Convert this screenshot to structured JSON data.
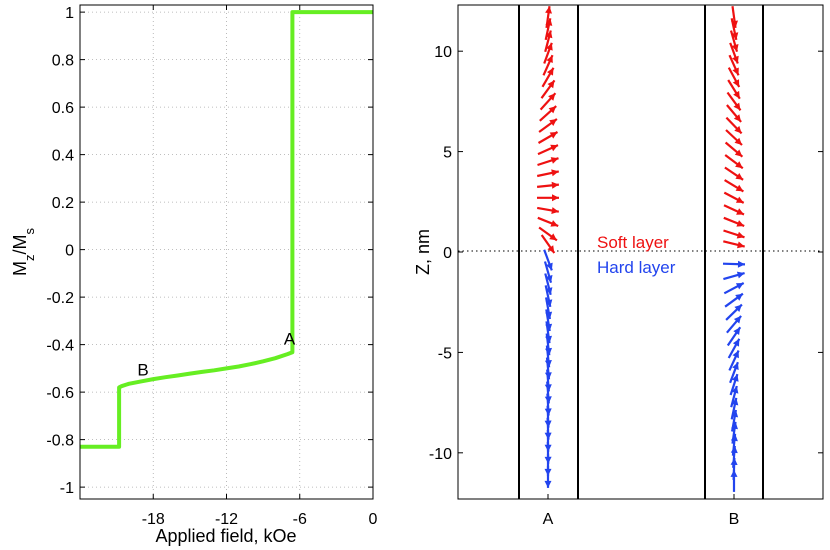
{
  "chart_data": [
    {
      "type": "line",
      "xlabel": "Applied field, kOe",
      "ylabel_main": "M",
      "ylabel_sub1": "z",
      "ylabel_mid": "/M",
      "ylabel_sub2": "s",
      "xlim": [
        -24,
        0
      ],
      "ylim": [
        -1.05,
        1.03
      ],
      "xticks": [
        -18,
        -12,
        -6,
        0
      ],
      "yticks": [
        1,
        0.8,
        0.6,
        0.4,
        0.2,
        0,
        -0.2,
        -0.4,
        -0.6,
        -0.8,
        -1
      ],
      "ytick_labels": [
        "1",
        "0.8",
        "0.6",
        "0.4",
        "0.2",
        "0",
        "-0.2",
        "-0.4",
        "-0.6",
        "-0.8",
        "-1"
      ],
      "grid": true,
      "line_color": "#66ee22",
      "series": [
        {
          "x": [
            -24,
            -20.8,
            -20.8,
            -20.6,
            -20,
            -19,
            -18,
            -17,
            -16,
            -15,
            -14,
            -13,
            -12,
            -11,
            -10,
            -9,
            -8,
            -7,
            -6.6,
            -6.6,
            -6.5,
            -4,
            -2,
            -1,
            0
          ],
          "y": [
            -0.83,
            -0.83,
            -0.58,
            -0.575,
            -0.565,
            -0.555,
            -0.545,
            -0.537,
            -0.53,
            -0.522,
            -0.515,
            -0.508,
            -0.5,
            -0.492,
            -0.482,
            -0.47,
            -0.457,
            -0.44,
            -0.432,
            1.0,
            1.0,
            1.0,
            1.0,
            1.0,
            1.0
          ]
        }
      ],
      "annotations": [
        {
          "text": "A",
          "x": -7.3,
          "y": -0.4
        },
        {
          "text": "B",
          "x": -19.3,
          "y": -0.53
        }
      ]
    },
    {
      "type": "scatter",
      "ylabel": "Z, nm",
      "ylim": [
        -12.3,
        12.3
      ],
      "yticks": [
        10,
        5,
        0,
        -5,
        -10
      ],
      "xtick_labels": [
        "A",
        "B"
      ],
      "zero_line": "dotted",
      "soft_color": "#ee1111",
      "hard_color": "#2244ee",
      "layer_labels": {
        "soft": "Soft  layer",
        "hard": "Hard layer"
      },
      "columns": [
        {
          "label": "A",
          "arrows": [
            {
              "z": 11.7,
              "angle": 8
            },
            {
              "z": 11.1,
              "angle": 12
            },
            {
              "z": 10.5,
              "angle": 15
            },
            {
              "z": 9.9,
              "angle": 20
            },
            {
              "z": 9.3,
              "angle": 24
            },
            {
              "z": 8.7,
              "angle": 30
            },
            {
              "z": 8.1,
              "angle": 36
            },
            {
              "z": 7.5,
              "angle": 42
            },
            {
              "z": 6.9,
              "angle": 48
            },
            {
              "z": 6.3,
              "angle": 54
            },
            {
              "z": 5.7,
              "angle": 60
            },
            {
              "z": 5.1,
              "angle": 66
            },
            {
              "z": 4.5,
              "angle": 72
            },
            {
              "z": 3.9,
              "angle": 78
            },
            {
              "z": 3.3,
              "angle": 84
            },
            {
              "z": 2.7,
              "angle": 90
            },
            {
              "z": 2.1,
              "angle": 100
            },
            {
              "z": 1.5,
              "angle": 112
            },
            {
              "z": 0.9,
              "angle": 126
            },
            {
              "z": 0.4,
              "angle": 145
            },
            {
              "z": -0.4,
              "angle": 160
            },
            {
              "z": -1.0,
              "angle": 164
            },
            {
              "z": -1.6,
              "angle": 166
            },
            {
              "z": -2.2,
              "angle": 168
            },
            {
              "z": -2.8,
              "angle": 170
            },
            {
              "z": -3.4,
              "angle": 171
            },
            {
              "z": -4.0,
              "angle": 172
            },
            {
              "z": -4.6,
              "angle": 173
            },
            {
              "z": -5.2,
              "angle": 174
            },
            {
              "z": -5.8,
              "angle": 175
            },
            {
              "z": -6.4,
              "angle": 176
            },
            {
              "z": -7.0,
              "angle": 176
            },
            {
              "z": -7.6,
              "angle": 177
            },
            {
              "z": -8.2,
              "angle": 178
            },
            {
              "z": -8.8,
              "angle": 178
            },
            {
              "z": -9.4,
              "angle": 179
            },
            {
              "z": -10.0,
              "angle": 179
            },
            {
              "z": -10.6,
              "angle": 180
            },
            {
              "z": -11.2,
              "angle": 180
            }
          ]
        },
        {
          "label": "B",
          "arrows": [
            {
              "z": 11.7,
              "angle": 172
            },
            {
              "z": 11.1,
              "angle": 168
            },
            {
              "z": 10.5,
              "angle": 164
            },
            {
              "z": 9.9,
              "angle": 160
            },
            {
              "z": 9.3,
              "angle": 156
            },
            {
              "z": 8.7,
              "angle": 152
            },
            {
              "z": 8.1,
              "angle": 148
            },
            {
              "z": 7.5,
              "angle": 144
            },
            {
              "z": 6.9,
              "angle": 140
            },
            {
              "z": 6.3,
              "angle": 136
            },
            {
              "z": 5.7,
              "angle": 133
            },
            {
              "z": 5.1,
              "angle": 130
            },
            {
              "z": 4.5,
              "angle": 127
            },
            {
              "z": 3.9,
              "angle": 124
            },
            {
              "z": 3.3,
              "angle": 121
            },
            {
              "z": 2.7,
              "angle": 118
            },
            {
              "z": 2.1,
              "angle": 115
            },
            {
              "z": 1.5,
              "angle": 112
            },
            {
              "z": 0.9,
              "angle": 108
            },
            {
              "z": 0.4,
              "angle": 104
            },
            {
              "z": -0.6,
              "angle": 92
            },
            {
              "z": -1.2,
              "angle": 74
            },
            {
              "z": -1.8,
              "angle": 62
            },
            {
              "z": -2.4,
              "angle": 54
            },
            {
              "z": -3.0,
              "angle": 46
            },
            {
              "z": -3.6,
              "angle": 40
            },
            {
              "z": -4.2,
              "angle": 34
            },
            {
              "z": -4.8,
              "angle": 29
            },
            {
              "z": -5.4,
              "angle": 25
            },
            {
              "z": -6.0,
              "angle": 21
            },
            {
              "z": -6.6,
              "angle": 18
            },
            {
              "z": -7.2,
              "angle": 15
            },
            {
              "z": -7.8,
              "angle": 12
            },
            {
              "z": -8.4,
              "angle": 10
            },
            {
              "z": -9.0,
              "angle": 8
            },
            {
              "z": -9.6,
              "angle": 6
            },
            {
              "z": -10.2,
              "angle": 4
            },
            {
              "z": -10.8,
              "angle": 2
            },
            {
              "z": -11.4,
              "angle": 0
            }
          ]
        }
      ]
    }
  ]
}
